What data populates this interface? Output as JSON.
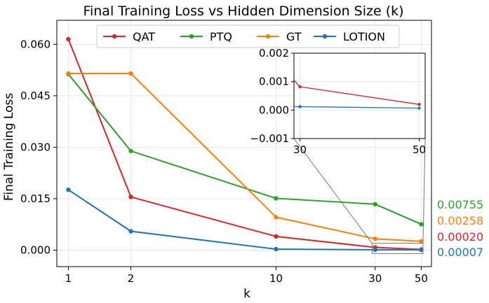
{
  "chart_data": {
    "type": "line",
    "title": "Final Training Loss vs Hidden Dimension Size (k)",
    "xlabel": "k",
    "ylabel": "Final Training Loss",
    "x": [
      1,
      2,
      10,
      30,
      50
    ],
    "x_scale": "log",
    "xlim": [
      0.88,
      56
    ],
    "ylim": [
      -0.0048,
      0.067
    ],
    "x_ticks": [
      1,
      2,
      10,
      30,
      50
    ],
    "y_ticks": [
      {
        "value": 0,
        "label": "0.000"
      },
      {
        "value": 0.015,
        "label": "0.015"
      },
      {
        "value": 0.03,
        "label": "0.030"
      },
      {
        "value": 0.045,
        "label": "0.045"
      },
      {
        "value": 0.06,
        "label": "0.060"
      }
    ],
    "grid": true,
    "legend_position": "top-center",
    "series": [
      {
        "name": "QAT",
        "color": "#d62728",
        "values": [
          0.0615,
          0.0155,
          0.004,
          0.0008,
          0.0002
        ]
      },
      {
        "name": "PTQ",
        "color": "#2ca02c",
        "values": [
          0.0513,
          0.0289,
          0.0151,
          0.0134,
          0.00755
        ]
      },
      {
        "name": "GT",
        "color": "#ff7f0e",
        "values": [
          0.0515,
          0.0515,
          0.0096,
          0.0033,
          0.00258
        ]
      },
      {
        "name": "LOTION",
        "color": "#1f77b4",
        "values": [
          0.0176,
          0.0055,
          0.0003,
          0.0001,
          7e-05
        ]
      }
    ],
    "end_labels": [
      {
        "text": "0.00755",
        "color": "#2ca02c"
      },
      {
        "text": "0.00258",
        "color": "#ff7f0e"
      },
      {
        "text": "0.00020",
        "color": "#d62728"
      },
      {
        "text": "0.00007",
        "color": "#1f77b4"
      }
    ],
    "inset": {
      "xlim": [
        29,
        51
      ],
      "ylim": [
        -0.001,
        0.002
      ],
      "x_ticks": [
        {
          "value": 30,
          "label": "30"
        },
        {
          "value": 50,
          "label": "50"
        }
      ],
      "y_ticks": [
        {
          "value": -0.001,
          "label": "−0.001"
        },
        {
          "value": 0,
          "label": "0.000"
        },
        {
          "value": 0.001,
          "label": "0.001"
        },
        {
          "value": 0.002,
          "label": "0.002"
        }
      ],
      "series": [
        {
          "name": "QAT",
          "color": "#d62728",
          "x": [
            29,
            30,
            50
          ],
          "values": [
            0.00105,
            0.00082,
            0.0002
          ]
        },
        {
          "name": "LOTION",
          "color": "#1f77b4",
          "x": [
            29,
            30,
            50
          ],
          "values": [
            0.00012,
            0.00012,
            7e-05
          ]
        }
      ]
    }
  }
}
